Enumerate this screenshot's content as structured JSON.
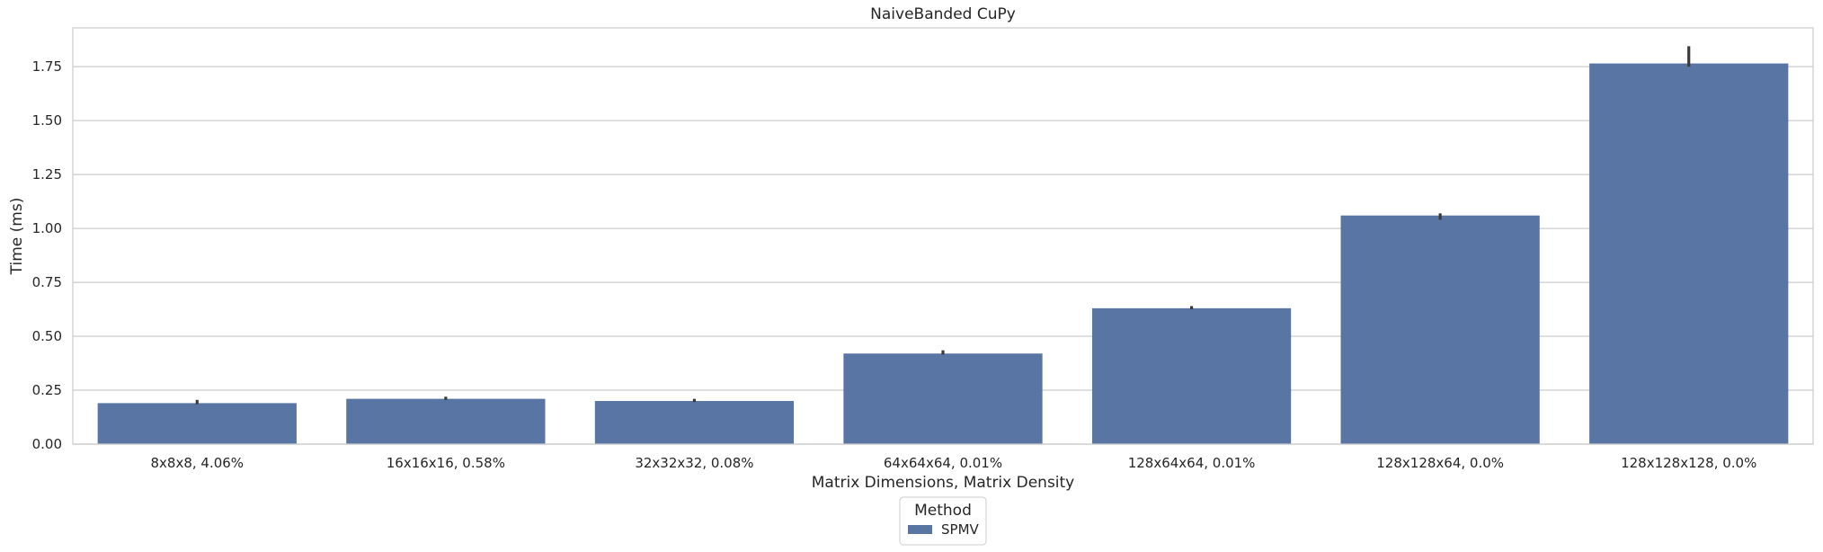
{
  "chart_data": {
    "type": "bar",
    "title": "NaiveBanded CuPy",
    "xlabel": "Matrix Dimensions, Matrix Density",
    "ylabel": "Time (ms)",
    "categories": [
      "8x8x8, 4.06%",
      "16x16x16, 0.58%",
      "32x32x32, 0.08%",
      "64x64x64, 0.01%",
      "128x64x64, 0.01%",
      "128x128x64, 0.0%",
      "128x128x128, 0.0%"
    ],
    "series": [
      {
        "name": "SPMV",
        "color": "#5975a4",
        "values": [
          0.19,
          0.21,
          0.2,
          0.42,
          0.63,
          1.06,
          1.765
        ],
        "error_low": [
          0.185,
          0.205,
          0.195,
          0.415,
          0.625,
          1.04,
          1.75
        ],
        "error_high": [
          0.205,
          0.22,
          0.21,
          0.435,
          0.64,
          1.07,
          1.845
        ]
      }
    ],
    "ylim": [
      0,
      1.93
    ],
    "yticks": [
      "0.00",
      "0.25",
      "0.50",
      "0.75",
      "1.00",
      "1.25",
      "1.50",
      "1.75"
    ],
    "grid": "horizontal",
    "legend": {
      "title": "Method",
      "placement": "bottom-center"
    }
  }
}
